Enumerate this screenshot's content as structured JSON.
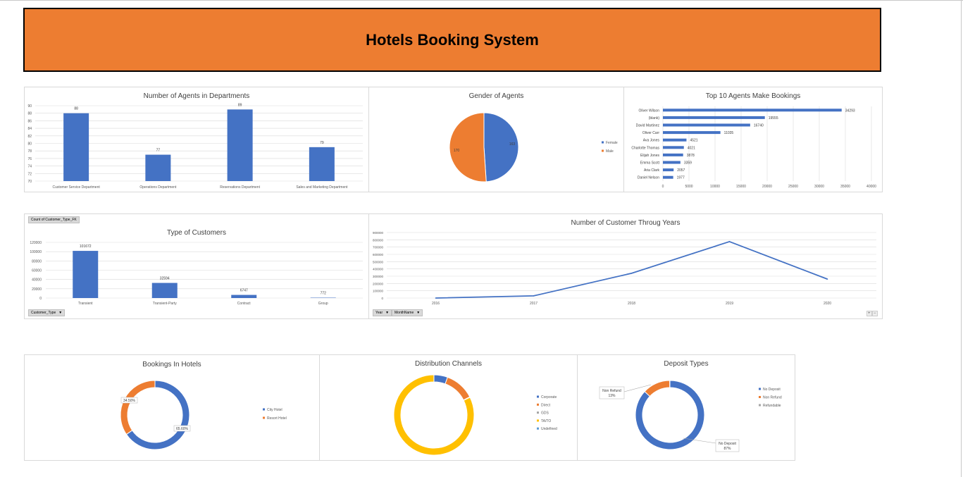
{
  "title": "Hotels Booking System",
  "colors": {
    "blue": "#4472c4",
    "orange": "#ed7d31",
    "gold": "#ffc000",
    "gray": "#a5a5a5",
    "lightblue": "#5b9bd5",
    "green": "#70ad47",
    "banner": "#ed7d31"
  },
  "chart_data": [
    {
      "id": "agents_dept",
      "type": "bar",
      "title": "Number of Agents in Departments",
      "categories": [
        "Customer Service Department",
        "Operations Department",
        "Reservations Department",
        "Sales and Marketing Department"
      ],
      "values": [
        88,
        77,
        89,
        79
      ],
      "ylim": [
        70,
        90
      ],
      "yticks": [
        "70",
        "72",
        "74",
        "76",
        "78",
        "80",
        "82",
        "84",
        "86",
        "88",
        "90"
      ],
      "grid": true
    },
    {
      "id": "gender",
      "type": "pie",
      "title": "Gender of Agents",
      "labels": [
        "Female",
        "Male"
      ],
      "values": [
        163,
        170
      ],
      "value_labels": [
        "163",
        "170"
      ],
      "legend": "right"
    },
    {
      "id": "top_agents",
      "type": "bar",
      "orientation": "horizontal",
      "title": "Top 10 Agents Make Bookings",
      "categories": [
        "Oliver Wilson",
        "(blank)",
        "David Martinez",
        "Oliver Carr",
        "Ava Jones",
        "Charlotte Thomas",
        "Elijah Jones",
        "Emma Scott",
        "Aria Clark",
        "Daniel Nelson"
      ],
      "values": [
        34293,
        19555,
        16740,
        11035,
        4521,
        4021,
        3878,
        3359,
        2057,
        1977
      ],
      "value_labels": [
        "34293",
        "19555",
        "16740",
        "11035",
        "4521",
        "4021",
        "3878",
        "3359",
        "2057",
        "1977"
      ],
      "xlim": [
        0,
        40000
      ],
      "xticks": [
        "0",
        "5000",
        "10000",
        "15000",
        "20000",
        "25000",
        "30000",
        "35000",
        "40000"
      ]
    },
    {
      "id": "customer_type",
      "type": "bar",
      "title": "Type of Customers",
      "categories": [
        "Transient",
        "Transient-Party",
        "Contract",
        "Group"
      ],
      "values": [
        101672,
        32594,
        6747,
        772
      ],
      "value_labels": [
        "101672",
        "32594",
        "6747",
        "772"
      ],
      "ylim": [
        0,
        120000
      ],
      "yticks": [
        "0",
        "20000",
        "40000",
        "60000",
        "80000",
        "100000",
        "120000"
      ],
      "field_label": "Count of Customer_Type_FK",
      "filter_label": "Customer_Type"
    },
    {
      "id": "customers_years",
      "type": "line",
      "title": "Number of Customer Throug Years",
      "x": [
        "2016",
        "2017",
        "2018",
        "2019",
        "2020"
      ],
      "values": [
        0,
        30000,
        340000,
        775000,
        260000
      ],
      "ylim": [
        0,
        900000
      ],
      "yticks": [
        "0",
        "100000",
        "200000",
        "300000",
        "400000",
        "500000",
        "600000",
        "700000",
        "800000",
        "900000"
      ],
      "filters": [
        "Year",
        "MonthName"
      ]
    },
    {
      "id": "bookings_hotels",
      "type": "pie",
      "subtype": "donut",
      "title": "Bookings In Hotels",
      "labels": [
        "City Hotel",
        "Resort Hotel"
      ],
      "values": [
        65.6,
        34.5
      ],
      "value_labels": [
        "65.60%",
        "34.50%"
      ],
      "legend": "right"
    },
    {
      "id": "distribution",
      "type": "pie",
      "subtype": "donut",
      "title": "Distribution Channels",
      "labels": [
        "Corporate",
        "Direct",
        "GDS",
        "TA/TO",
        "Undefined"
      ],
      "values": [
        5.5,
        12,
        0.2,
        82,
        0.01
      ],
      "legend": "right"
    },
    {
      "id": "deposit",
      "type": "pie",
      "subtype": "donut",
      "title": "Deposit  Types",
      "labels": [
        "No Deposit",
        "Non Refund",
        "Refundable"
      ],
      "values": [
        87,
        13,
        0.1
      ],
      "callouts": [
        [
          "No Deposit",
          "87%"
        ],
        [
          "Non Refund",
          "13%"
        ]
      ],
      "legend": "right"
    }
  ]
}
